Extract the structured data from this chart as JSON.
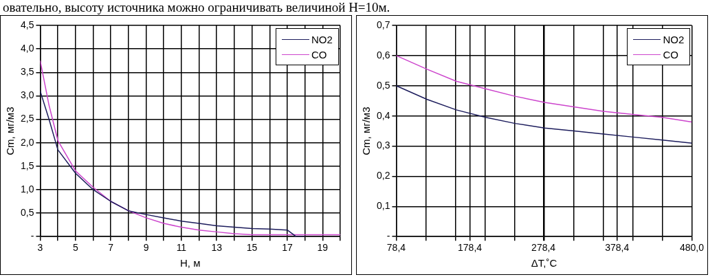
{
  "chart_data": [
    {
      "type": "line",
      "annotations": [
        "овательно, высоту источника можно ограничивать величиной Н=10м."
      ],
      "xlabel": "Н, м",
      "ylabel": "Cm, мг/м3",
      "xlim": [
        3,
        20
      ],
      "ylim": [
        0,
        4.5
      ],
      "xticks": [
        3,
        {
          "value": 4,
          "label": null
        },
        5,
        {
          "value": 6,
          "label": null
        },
        7,
        {
          "value": 8,
          "label": null
        },
        9,
        {
          "value": 10,
          "label": null
        },
        11,
        {
          "value": 12,
          "label": null
        },
        13,
        {
          "value": 14,
          "label": null
        },
        15,
        {
          "value": 16,
          "label": null
        },
        17,
        {
          "value": 18,
          "label": null
        },
        19,
        {
          "value": 20,
          "label": null
        }
      ],
      "yticks": [
        {
          "value": 0,
          "label": "-"
        },
        {
          "value": 0.5,
          "label": "0,5"
        },
        {
          "value": 1,
          "label": "1,0"
        },
        {
          "value": 1.5,
          "label": "1,5"
        },
        {
          "value": 2,
          "label": "2,0"
        },
        {
          "value": 2.5,
          "label": "2,5"
        },
        {
          "value": 3,
          "label": "3,0"
        },
        {
          "value": 3.5,
          "label": "3,5"
        },
        {
          "value": 4,
          "label": "4,0"
        },
        {
          "value": 4.5,
          "label": "4,5"
        }
      ],
      "x": [
        3,
        3.5,
        4,
        5,
        6,
        7,
        8,
        9,
        10,
        11,
        12,
        13,
        14,
        15,
        16,
        17,
        17.5,
        18,
        19,
        20
      ],
      "series": [
        {
          "name": "NO2",
          "color": "#1c1c5c",
          "values": [
            3.1,
            2.5,
            1.85,
            1.35,
            1.0,
            0.75,
            0.55,
            0.47,
            0.4,
            0.33,
            0.28,
            0.23,
            0.2,
            0.17,
            0.16,
            0.14,
            0,
            0,
            null,
            null
          ]
        },
        {
          "name": "CO",
          "color": "#cc44cc",
          "values": [
            3.75,
            2.8,
            2.05,
            1.4,
            1.05,
            0.75,
            0.55,
            0.4,
            0.28,
            0.2,
            0.14,
            0.1,
            0.06,
            0.04,
            0.04,
            0.04,
            0.04,
            0.04,
            0.04,
            0.04
          ]
        }
      ],
      "grid": true,
      "legend": "top right"
    },
    {
      "type": "line",
      "xlabel": "ΔT,˚C",
      "ylabel": "Cm, мг/м3",
      "xlim": [
        78.4,
        480
      ],
      "ylim": [
        0,
        0.7
      ],
      "xticks": [
        {
          "value": 78.4,
          "label": "78,4"
        },
        {
          "value": 118.56,
          "label": null
        },
        {
          "value": 158.72,
          "label": null
        },
        {
          "value": 178.4,
          "label": "178,4"
        },
        {
          "value": 198.88,
          "label": null
        },
        {
          "value": 239.04,
          "label": null
        },
        {
          "value": 278.4,
          "label": "278,4"
        },
        {
          "value": 279.2,
          "label": null
        },
        {
          "value": 319.36,
          "label": null
        },
        {
          "value": 359.52,
          "label": null
        },
        {
          "value": 378.4,
          "label": "378,4"
        },
        {
          "value": 399.68,
          "label": null
        },
        {
          "value": 439.84,
          "label": null
        },
        {
          "value": 480,
          "label": "480,0"
        }
      ],
      "yticks": [
        {
          "value": 0,
          "label": "-"
        },
        {
          "value": 0.1,
          "label": "0,1"
        },
        {
          "value": 0.2,
          "label": "0,2"
        },
        {
          "value": 0.3,
          "label": "0,3"
        },
        {
          "value": 0.4,
          "label": "0,4"
        },
        {
          "value": 0.5,
          "label": "0,5"
        },
        {
          "value": 0.6,
          "label": "0,6"
        },
        {
          "value": 0.7,
          "label": "0,7"
        }
      ],
      "x": [
        78.4,
        120,
        160,
        200,
        240,
        280,
        320,
        360,
        400,
        440,
        480
      ],
      "series": [
        {
          "name": "NO2",
          "color": "#1c1c5c",
          "values": [
            0.5,
            0.455,
            0.42,
            0.395,
            0.375,
            0.36,
            0.35,
            0.34,
            0.33,
            0.32,
            0.31
          ]
        },
        {
          "name": "CO",
          "color": "#cc44cc",
          "values": [
            0.6,
            0.555,
            0.515,
            0.49,
            0.465,
            0.445,
            0.43,
            0.415,
            0.405,
            0.395,
            0.38
          ]
        }
      ],
      "grid": true,
      "legend": "top right"
    }
  ]
}
